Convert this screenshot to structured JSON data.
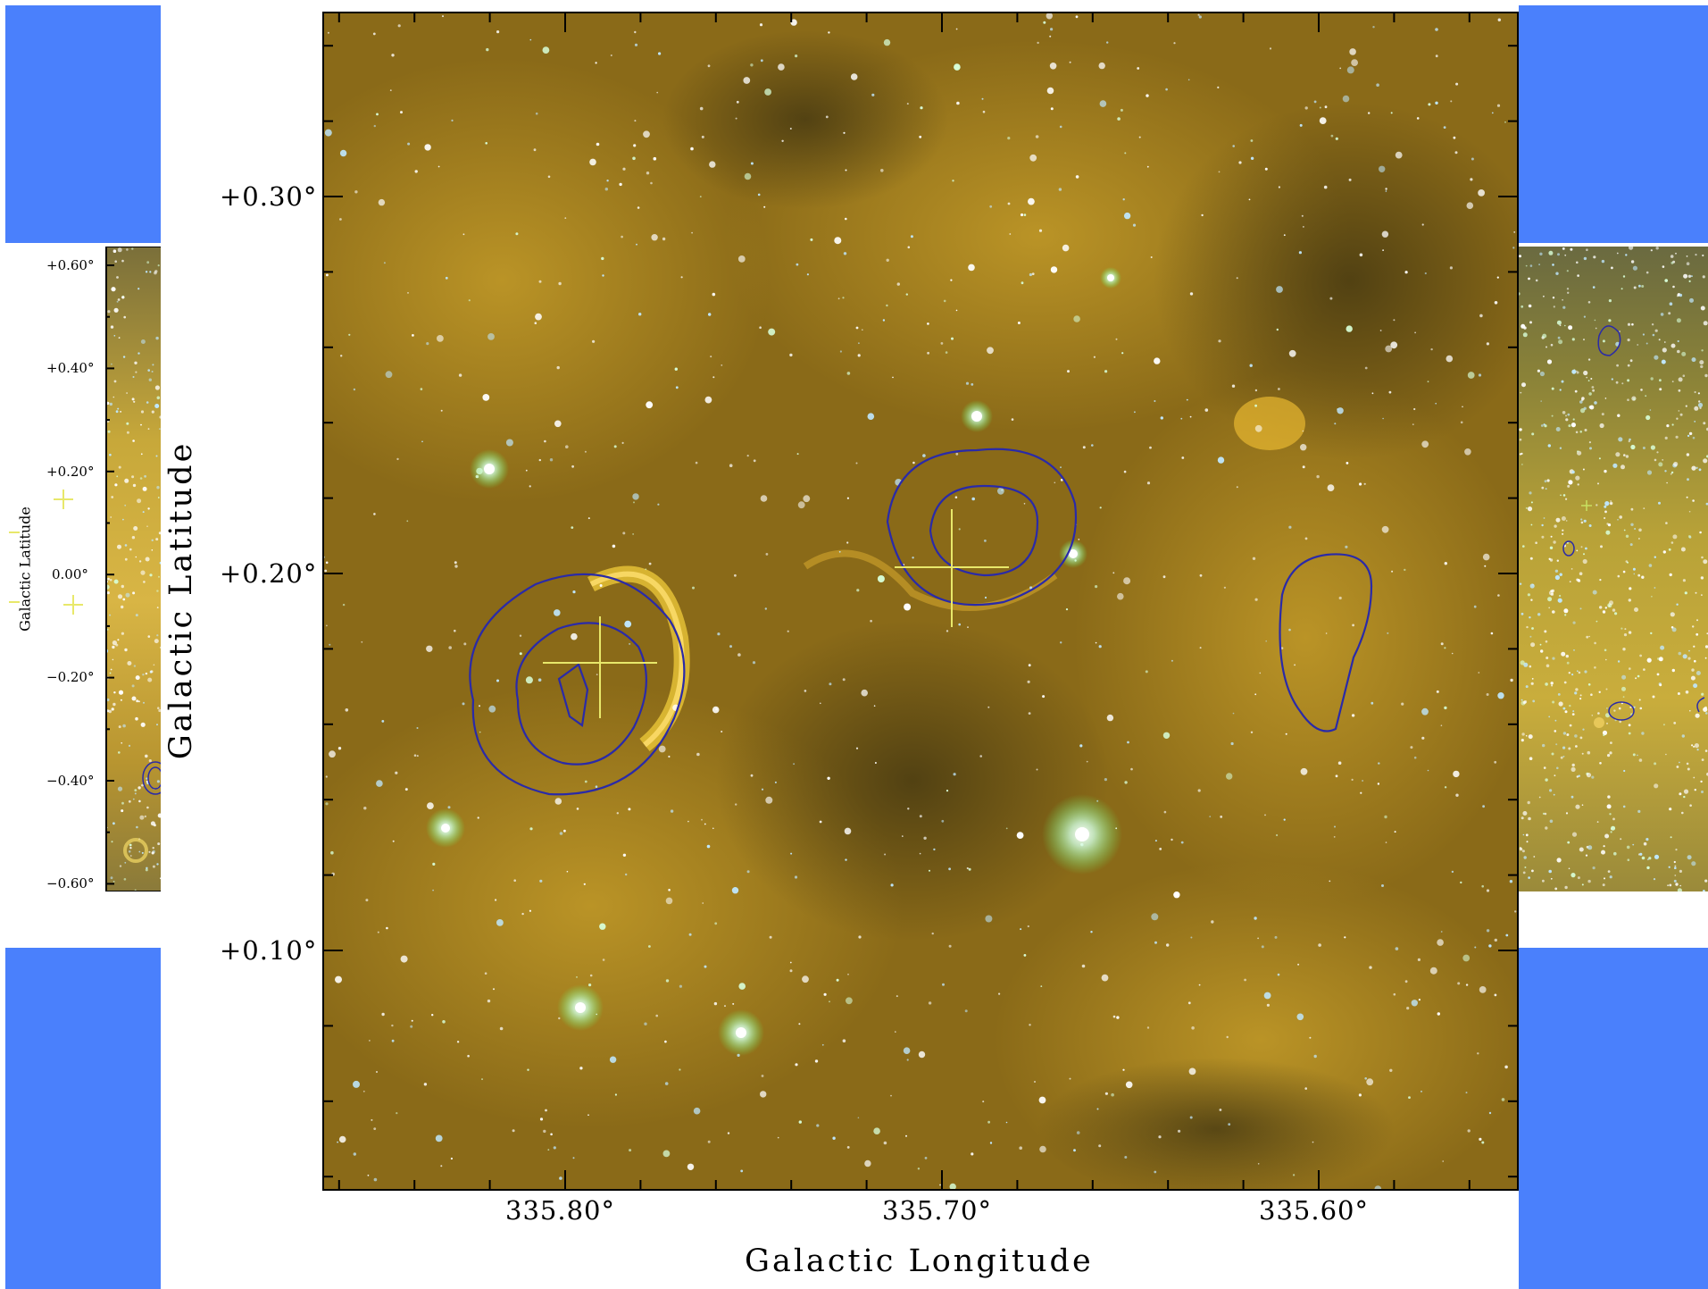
{
  "main_plot": {
    "x_label": "Galactic Longitude",
    "y_label": "Galactic Latitude",
    "x_ticks": [
      "335.80°",
      "335.70°",
      "335.60°"
    ],
    "y_ticks": [
      "+0.30°",
      "+0.20°",
      "+0.10°"
    ],
    "contour_color": "#2a2aa8",
    "marker_color": "#e8e86a"
  },
  "left_inset": {
    "y_label": "Galactic Latitude",
    "y_ticks": [
      "+0.60°",
      "+0.40°",
      "+0.20°",
      "0.00°",
      "−0.20°",
      "−0.40°",
      "−0.60°"
    ]
  },
  "colors": {
    "panel_blue": "#4a80fc",
    "nebula_gold": "#9a7a14",
    "background": "#ffffff"
  }
}
